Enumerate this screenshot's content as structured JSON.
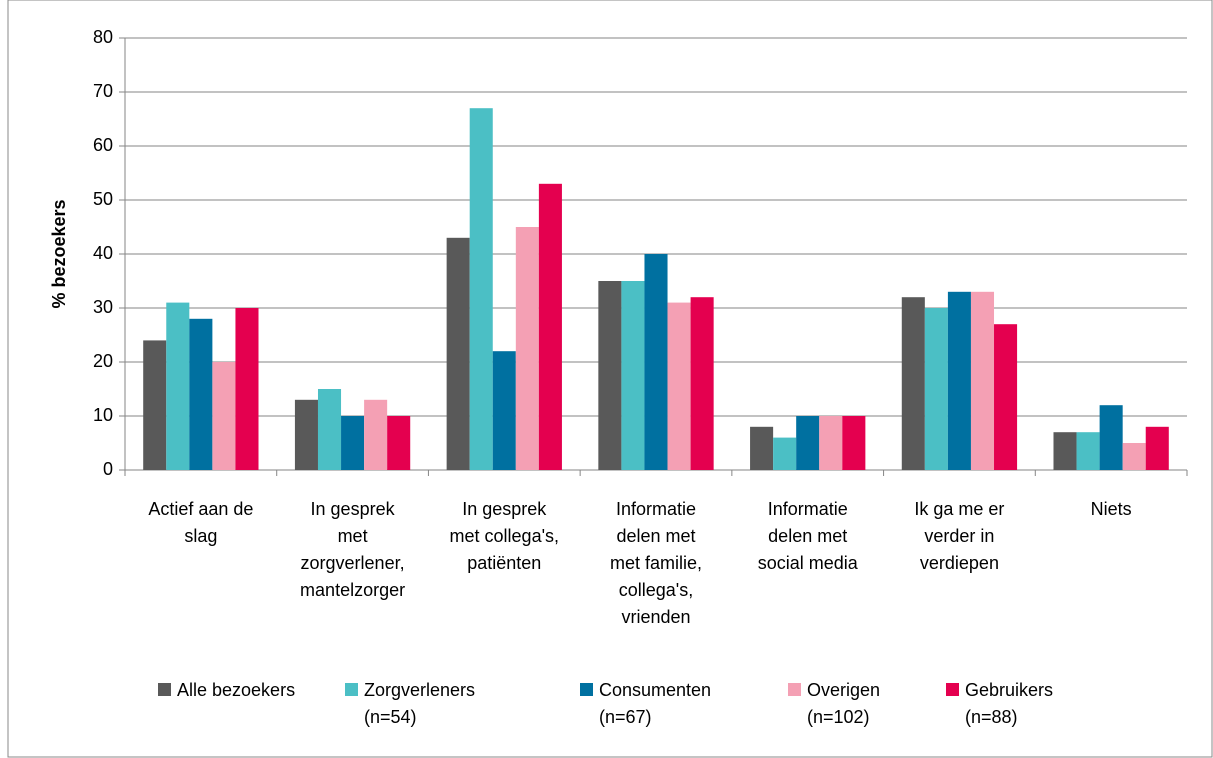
{
  "chart_data": {
    "type": "bar",
    "y_label": "% bezoekers",
    "categories": [
      "Actief aan de\nslag",
      "In gesprek\nmet\nzorgverlener,\nmantelzorger",
      "In gesprek\nmet collega's,\npatiënten",
      "Informatie\ndelen met\nmet familie,\ncollega's,\nvrienden",
      "Informatie\ndelen met\nsocial media",
      "Ik ga me er\nverder in\nverdiepen",
      "Niets"
    ],
    "series": [
      {
        "name": "Alle bezoekers",
        "color": "#595959",
        "values": [
          24,
          13,
          43,
          35,
          8,
          32,
          7
        ]
      },
      {
        "name": "Zorgverleners\n(n=54)",
        "color": "#4bbfc5",
        "values": [
          31,
          15,
          67,
          35,
          6,
          30,
          7
        ]
      },
      {
        "name": "Consumenten\n(n=67)",
        "color": "#0070a0",
        "values": [
          28,
          10,
          22,
          40,
          10,
          33,
          12
        ]
      },
      {
        "name": "Overigen\n(n=102)",
        "color": "#f4a0b4",
        "values": [
          20,
          13,
          45,
          31,
          10,
          33,
          5
        ]
      },
      {
        "name": "Gebruikers\n(n=88)",
        "color": "#e4004f",
        "values": [
          30,
          10,
          53,
          32,
          10,
          27,
          8
        ]
      }
    ],
    "ylim": [
      0,
      80
    ],
    "yticks": [
      0,
      10,
      20,
      30,
      40,
      50,
      60,
      70,
      80
    ],
    "grid": true,
    "legend": "bottom"
  }
}
